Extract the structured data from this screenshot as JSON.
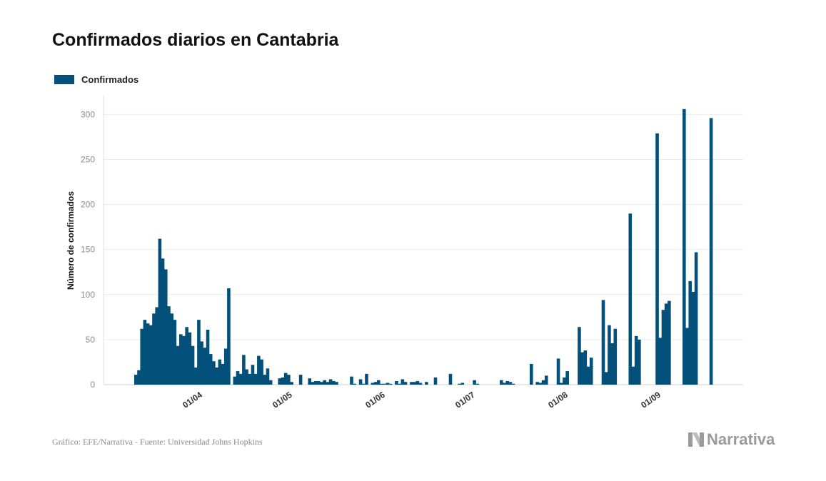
{
  "title": "Confirmados diarios en Cantabria",
  "legend": {
    "label": "Confirmados",
    "color": "#03507a"
  },
  "footer": {
    "source": "Gráfico: EFE/Narrativa - Fuente: Universidad Johns Hopkins"
  },
  "brand": {
    "name": "Narrativa",
    "icon": "narrativa-logo-icon"
  },
  "chart_data": {
    "type": "bar",
    "title": "Confirmados diarios en Cantabria",
    "xlabel": "",
    "ylabel": "Número de confirmados",
    "ylim": [
      0,
      320
    ],
    "yticks": [
      0,
      50,
      100,
      150,
      200,
      250,
      300
    ],
    "grid": true,
    "legend_position": "top-left",
    "x_start": "2020-03-12",
    "xticks": [
      {
        "date": "2020-04-01",
        "label": "01/04"
      },
      {
        "date": "2020-05-01",
        "label": "01/05"
      },
      {
        "date": "2020-06-01",
        "label": "01/06"
      },
      {
        "date": "2020-07-01",
        "label": "01/07"
      },
      {
        "date": "2020-08-01",
        "label": "01/08"
      },
      {
        "date": "2020-09-01",
        "label": "01/09"
      }
    ],
    "series": [
      {
        "name": "Confirmados",
        "color": "#03507a",
        "values": [
          11,
          16,
          62,
          72,
          68,
          66,
          79,
          86,
          162,
          140,
          128,
          87,
          79,
          72,
          43,
          56,
          54,
          64,
          58,
          43,
          19,
          72,
          48,
          41,
          61,
          34,
          26,
          19,
          28,
          23,
          40,
          107,
          0,
          9,
          15,
          12,
          33,
          17,
          12,
          22,
          12,
          32,
          28,
          11,
          18,
          5,
          0,
          0,
          7,
          8,
          13,
          11,
          3,
          0,
          0,
          11,
          0,
          0,
          7,
          3,
          4,
          4,
          3,
          5,
          3,
          6,
          4,
          3,
          0,
          0,
          0,
          0,
          9,
          1,
          0,
          6,
          1,
          12,
          0,
          2,
          3,
          5,
          1,
          1,
          2,
          1,
          0,
          4,
          1,
          6,
          3,
          0,
          3,
          3,
          4,
          2,
          0,
          3,
          0,
          0,
          8,
          0,
          0,
          0,
          0,
          12,
          0,
          0,
          1,
          2,
          0,
          0,
          0,
          5,
          1,
          0,
          0,
          0,
          0,
          0,
          0,
          0,
          5,
          2,
          4,
          3,
          1,
          0,
          0,
          0,
          0,
          0,
          23,
          0,
          3,
          2,
          5,
          10,
          0,
          0,
          0,
          29,
          2,
          8,
          15,
          0,
          0,
          0,
          64,
          36,
          38,
          20,
          30,
          0,
          0,
          0,
          94,
          14,
          66,
          46,
          62,
          0,
          0,
          0,
          0,
          190,
          20,
          54,
          50,
          0,
          0,
          0,
          0,
          0,
          279,
          52,
          83,
          90,
          93,
          0,
          0,
          0,
          0,
          306,
          63,
          115,
          103,
          147,
          0,
          0,
          0,
          0,
          296
        ]
      }
    ]
  }
}
